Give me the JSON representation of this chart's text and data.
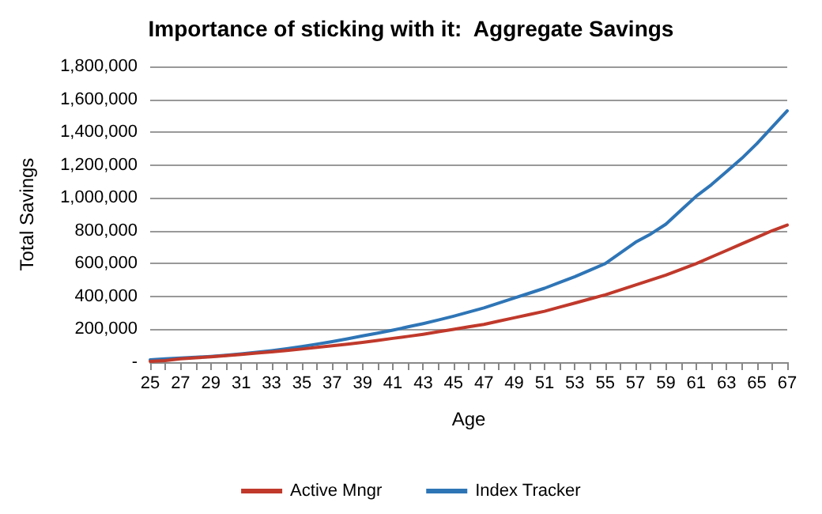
{
  "chart_data": {
    "type": "line",
    "title": "Importance of sticking with it:  Aggregate Savings",
    "xlabel": "Age",
    "ylabel": "Total Savings",
    "categories": [
      "25",
      null,
      "27",
      null,
      "29",
      null,
      "31",
      null,
      "33",
      null,
      "35",
      null,
      "37",
      null,
      "39",
      null,
      "41",
      null,
      "43",
      null,
      "45",
      null,
      "47",
      null,
      "49",
      null,
      "51",
      null,
      "53",
      null,
      "55",
      null,
      "57",
      null,
      "59",
      null,
      "61",
      null,
      "63",
      null,
      "65",
      null,
      "67"
    ],
    "series": [
      {
        "name": "Active Mngr",
        "color": "#c0392b",
        "values": [
          5000,
          10000,
          20000,
          26000,
          33000,
          40000,
          47000,
          55000,
          63000,
          71000,
          80000,
          90000,
          100000,
          110000,
          120000,
          132000,
          145000,
          157000,
          170000,
          185000,
          200000,
          215000,
          230000,
          250000,
          270000,
          290000,
          310000,
          335000,
          360000,
          385000,
          410000,
          440000,
          470000,
          500000,
          530000,
          565000,
          600000,
          640000,
          680000,
          720000,
          760000,
          800000,
          835000
        ]
      },
      {
        "name": "Index Tracker",
        "color": "#2e75b6",
        "values": [
          15000,
          20000,
          25000,
          30000,
          35000,
          42000,
          50000,
          60000,
          70000,
          82000,
          95000,
          110000,
          125000,
          142000,
          160000,
          177000,
          195000,
          215000,
          235000,
          257000,
          280000,
          305000,
          330000,
          360000,
          390000,
          420000,
          450000,
          485000,
          520000,
          560000,
          600000,
          665000,
          730000,
          780000,
          840000,
          925000,
          1010000,
          1080000,
          1160000,
          1240000,
          1330000,
          1430000,
          1530000
        ]
      }
    ],
    "ylim": [
      0,
      1800000
    ],
    "yticks": [
      {
        "value": 0,
        "label": "-"
      },
      {
        "value": 200000,
        "label": "200,000"
      },
      {
        "value": 400000,
        "label": "400,000"
      },
      {
        "value": 600000,
        "label": "600,000"
      },
      {
        "value": 800000,
        "label": "800,000"
      },
      {
        "value": 1000000,
        "label": "1,000,000"
      },
      {
        "value": 1200000,
        "label": "1,200,000"
      },
      {
        "value": 1400000,
        "label": "1,400,000"
      },
      {
        "value": 1600000,
        "label": "1,600,000"
      },
      {
        "value": 1800000,
        "label": "1,800,000"
      }
    ],
    "grid": "y",
    "legend": "bottom",
    "marker": "none",
    "line_style": "solid"
  }
}
